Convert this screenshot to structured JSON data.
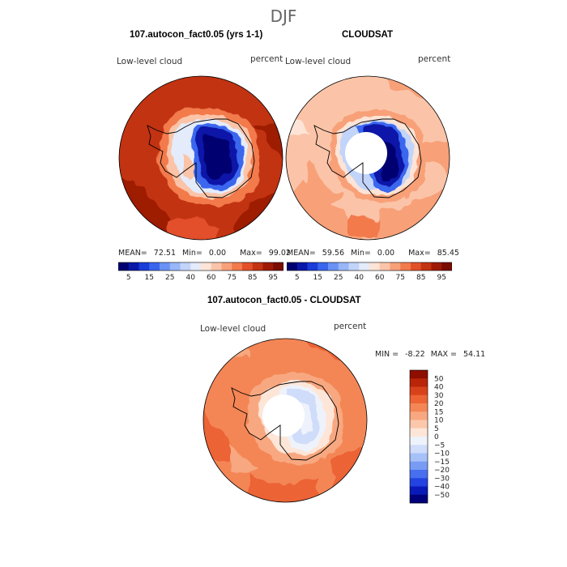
{
  "title": "DJF",
  "panels": [
    {
      "title": "107.autocon_fact0.05 (yrs 1-1)",
      "label": "Low-level cloud",
      "units": "percent",
      "mean": "72.51",
      "min": "0.00",
      "max": "99.02"
    },
    {
      "title": "CLOUDSAT",
      "label": "Low-level cloud",
      "units": "percent",
      "mean": "59.56",
      "min": "0.00",
      "max": "85.45"
    }
  ],
  "diff_panel": {
    "title": "107.autocon_fact0.05 - CLOUDSAT",
    "label": "Low-level cloud",
    "units": "percent",
    "min": "-8.22",
    "max": "54.11"
  },
  "stat_labels": {
    "mean": "MEAN=",
    "min": "Min=",
    "max": "Max=",
    "min_caps": "MIN =",
    "max_caps": "MAX ="
  },
  "chart_data": [
    {
      "type": "heatmap",
      "title": "Low-level cloud — 107.autocon_fact0.05 (yrs 1-1)",
      "projection": "south-polar stereographic",
      "units": "percent",
      "levels": [
        5,
        10,
        15,
        20,
        25,
        30,
        40,
        50,
        60,
        70,
        75,
        80,
        85,
        90,
        95
      ],
      "tick_labels": [
        "5",
        "15",
        "25",
        "40",
        "60",
        "75",
        "85",
        "95"
      ],
      "colors": [
        "#000070",
        "#0a18a8",
        "#1a3cd8",
        "#3a66ee",
        "#6a92f4",
        "#98b6f8",
        "#c2d4fa",
        "#e4ecfb",
        "#fde4d6",
        "#fbc4a8",
        "#f8a078",
        "#f27a4c",
        "#e2502a",
        "#c23312",
        "#9e1a06",
        "#7a0c02"
      ],
      "stats": {
        "mean": 72.51,
        "min": 0.0,
        "max": 99.02
      }
    },
    {
      "type": "heatmap",
      "title": "Low-level cloud — CLOUDSAT",
      "projection": "south-polar stereographic",
      "units": "percent",
      "levels": [
        5,
        10,
        15,
        20,
        25,
        30,
        40,
        50,
        60,
        70,
        75,
        80,
        85,
        90,
        95
      ],
      "tick_labels": [
        "5",
        "15",
        "25",
        "40",
        "60",
        "75",
        "85",
        "95"
      ],
      "colors": [
        "#000070",
        "#0a18a8",
        "#1a3cd8",
        "#3a66ee",
        "#6a92f4",
        "#98b6f8",
        "#c2d4fa",
        "#e4ecfb",
        "#fde4d6",
        "#fbc4a8",
        "#f8a078",
        "#f27a4c",
        "#e2502a",
        "#c23312",
        "#9e1a06",
        "#7a0c02"
      ],
      "stats": {
        "mean": 59.56,
        "min": 0.0,
        "max": 85.45
      }
    },
    {
      "type": "heatmap",
      "title": "Low-level cloud — 107.autocon_fact0.05 - CLOUDSAT",
      "projection": "south-polar stereographic",
      "units": "percent",
      "levels": [
        -50,
        -40,
        -30,
        -20,
        -15,
        -10,
        -5,
        0,
        5,
        10,
        15,
        20,
        30,
        40,
        50
      ],
      "tick_labels": [
        "50",
        "40",
        "30",
        "20",
        "15",
        "10",
        "5",
        "0",
        "−5",
        "−10",
        "−15",
        "−20",
        "−30",
        "−40",
        "−50"
      ],
      "colors": [
        "#00007a",
        "#0a1ab8",
        "#2344e0",
        "#4870ee",
        "#789cf4",
        "#a6c0f8",
        "#cfdcfa",
        "#eef2fb",
        "#fde6d8",
        "#fbc8ac",
        "#f8a880",
        "#f48656",
        "#ec6434",
        "#d8421a",
        "#b82508",
        "#8e0e00"
      ],
      "stats": {
        "min": -8.22,
        "max": 54.11
      }
    }
  ]
}
